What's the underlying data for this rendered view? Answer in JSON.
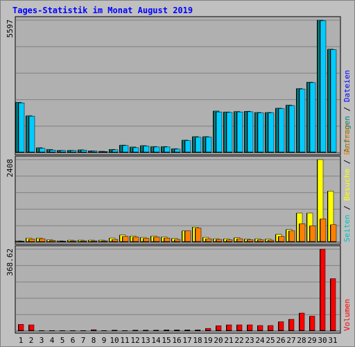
{
  "chart_data": {
    "type": "bar",
    "title": "Tages-Statistik im Monat August 2019",
    "colors": {
      "title": "#0000ff",
      "background": "#c0c0c0",
      "panel": "#b0b0b0",
      "gridline": "#808080",
      "weekend": "#008000",
      "anfragen": "#008080",
      "dateien": "#0000ff",
      "seiten": "#00c0c0",
      "besuche": "#ffff00",
      "rechner": "#ff8000",
      "volumen": "#ff0000"
    },
    "categories": [
      "1",
      "2",
      "3",
      "4",
      "5",
      "6",
      "7",
      "8",
      "9",
      "10",
      "11",
      "12",
      "13",
      "14",
      "15",
      "16",
      "17",
      "18",
      "19",
      "20",
      "21",
      "22",
      "23",
      "24",
      "25",
      "26",
      "27",
      "28",
      "29",
      "30",
      "31"
    ],
    "weekend_days": [
      "3",
      "4",
      "10",
      "11",
      "17",
      "18",
      "24",
      "25",
      "31"
    ],
    "panels": [
      {
        "id": "hits",
        "max_label": "5597",
        "ymax": 5597,
        "legend": [
          {
            "label": "Anfragen",
            "color": "#008080"
          },
          {
            "label": "Dateien",
            "color": "#0000ff"
          }
        ],
        "series": [
          {
            "name": "Anfragen",
            "color": "#008080",
            "values": [
              2130,
              1560,
              210,
              140,
              100,
              100,
              120,
              80,
              60,
              140,
              320,
              240,
              300,
              260,
              260,
              170,
              530,
              680,
              680,
              1760,
              1720,
              1740,
              1750,
              1700,
              1700,
              1880,
              2010,
              2710,
              2980,
              5597,
              4370
            ]
          },
          {
            "name": "Dateien",
            "color": "#00ccff",
            "values": [
              2100,
              1540,
              180,
              110,
              90,
              90,
              110,
              70,
              50,
              120,
              300,
              210,
              280,
              240,
              240,
              150,
              510,
              650,
              660,
              1720,
              1700,
              1720,
              1730,
              1680,
              1680,
              1860,
              1990,
              2690,
              2960,
              5570,
              4350
            ]
          }
        ]
      },
      {
        "id": "visits",
        "max_label": "2408",
        "ymax": 2408,
        "legend": [
          {
            "label": "Seiten",
            "color": "#00c0c0"
          },
          {
            "label": "Besuche",
            "color": "#ffff00"
          },
          {
            "label": "Rechner",
            "color": "#ff8000"
          }
        ],
        "series": [
          {
            "name": "Seiten",
            "color": "#00c0c0",
            "values": [
              0,
              0,
              0,
              0,
              0,
              0,
              0,
              0,
              0,
              0,
              0,
              0,
              0,
              0,
              0,
              0,
              0,
              0,
              0,
              0,
              0,
              0,
              0,
              0,
              0,
              0,
              0,
              0,
              0,
              0,
              0
            ]
          },
          {
            "name": "Besuche",
            "color": "#ffff00",
            "values": [
              40,
              120,
              120,
              70,
              40,
              60,
              60,
              60,
              60,
              120,
              210,
              180,
              140,
              180,
              150,
              110,
              330,
              440,
              140,
              100,
              100,
              130,
              90,
              100,
              90,
              230,
              370,
              850,
              850,
              2408,
              1490
            ]
          },
          {
            "name": "Rechner",
            "color": "#ff8000",
            "values": [
              30,
              90,
              100,
              50,
              30,
              40,
              40,
              40,
              40,
              80,
              170,
              150,
              110,
              150,
              120,
              80,
              330,
              410,
              100,
              80,
              70,
              100,
              70,
              70,
              60,
              170,
              330,
              540,
              480,
              680,
              510
            ]
          }
        ]
      },
      {
        "id": "volume",
        "max_label": "368.62",
        "ymax": 368.62,
        "legend": [
          {
            "label": "Volumen",
            "color": "#ff0000"
          }
        ],
        "series": [
          {
            "name": "Volumen",
            "color": "#ff0000",
            "values": [
              30,
              28,
              2,
              2,
              2,
              2,
              3,
              6,
              2,
              4,
              2,
              4,
              4,
              4,
              5,
              5,
              5,
              5,
              12,
              24,
              28,
              28,
              28,
              25,
              25,
              42,
              53,
              81,
              67,
              368.62,
              236
            ]
          }
        ]
      }
    ],
    "grid": true
  }
}
